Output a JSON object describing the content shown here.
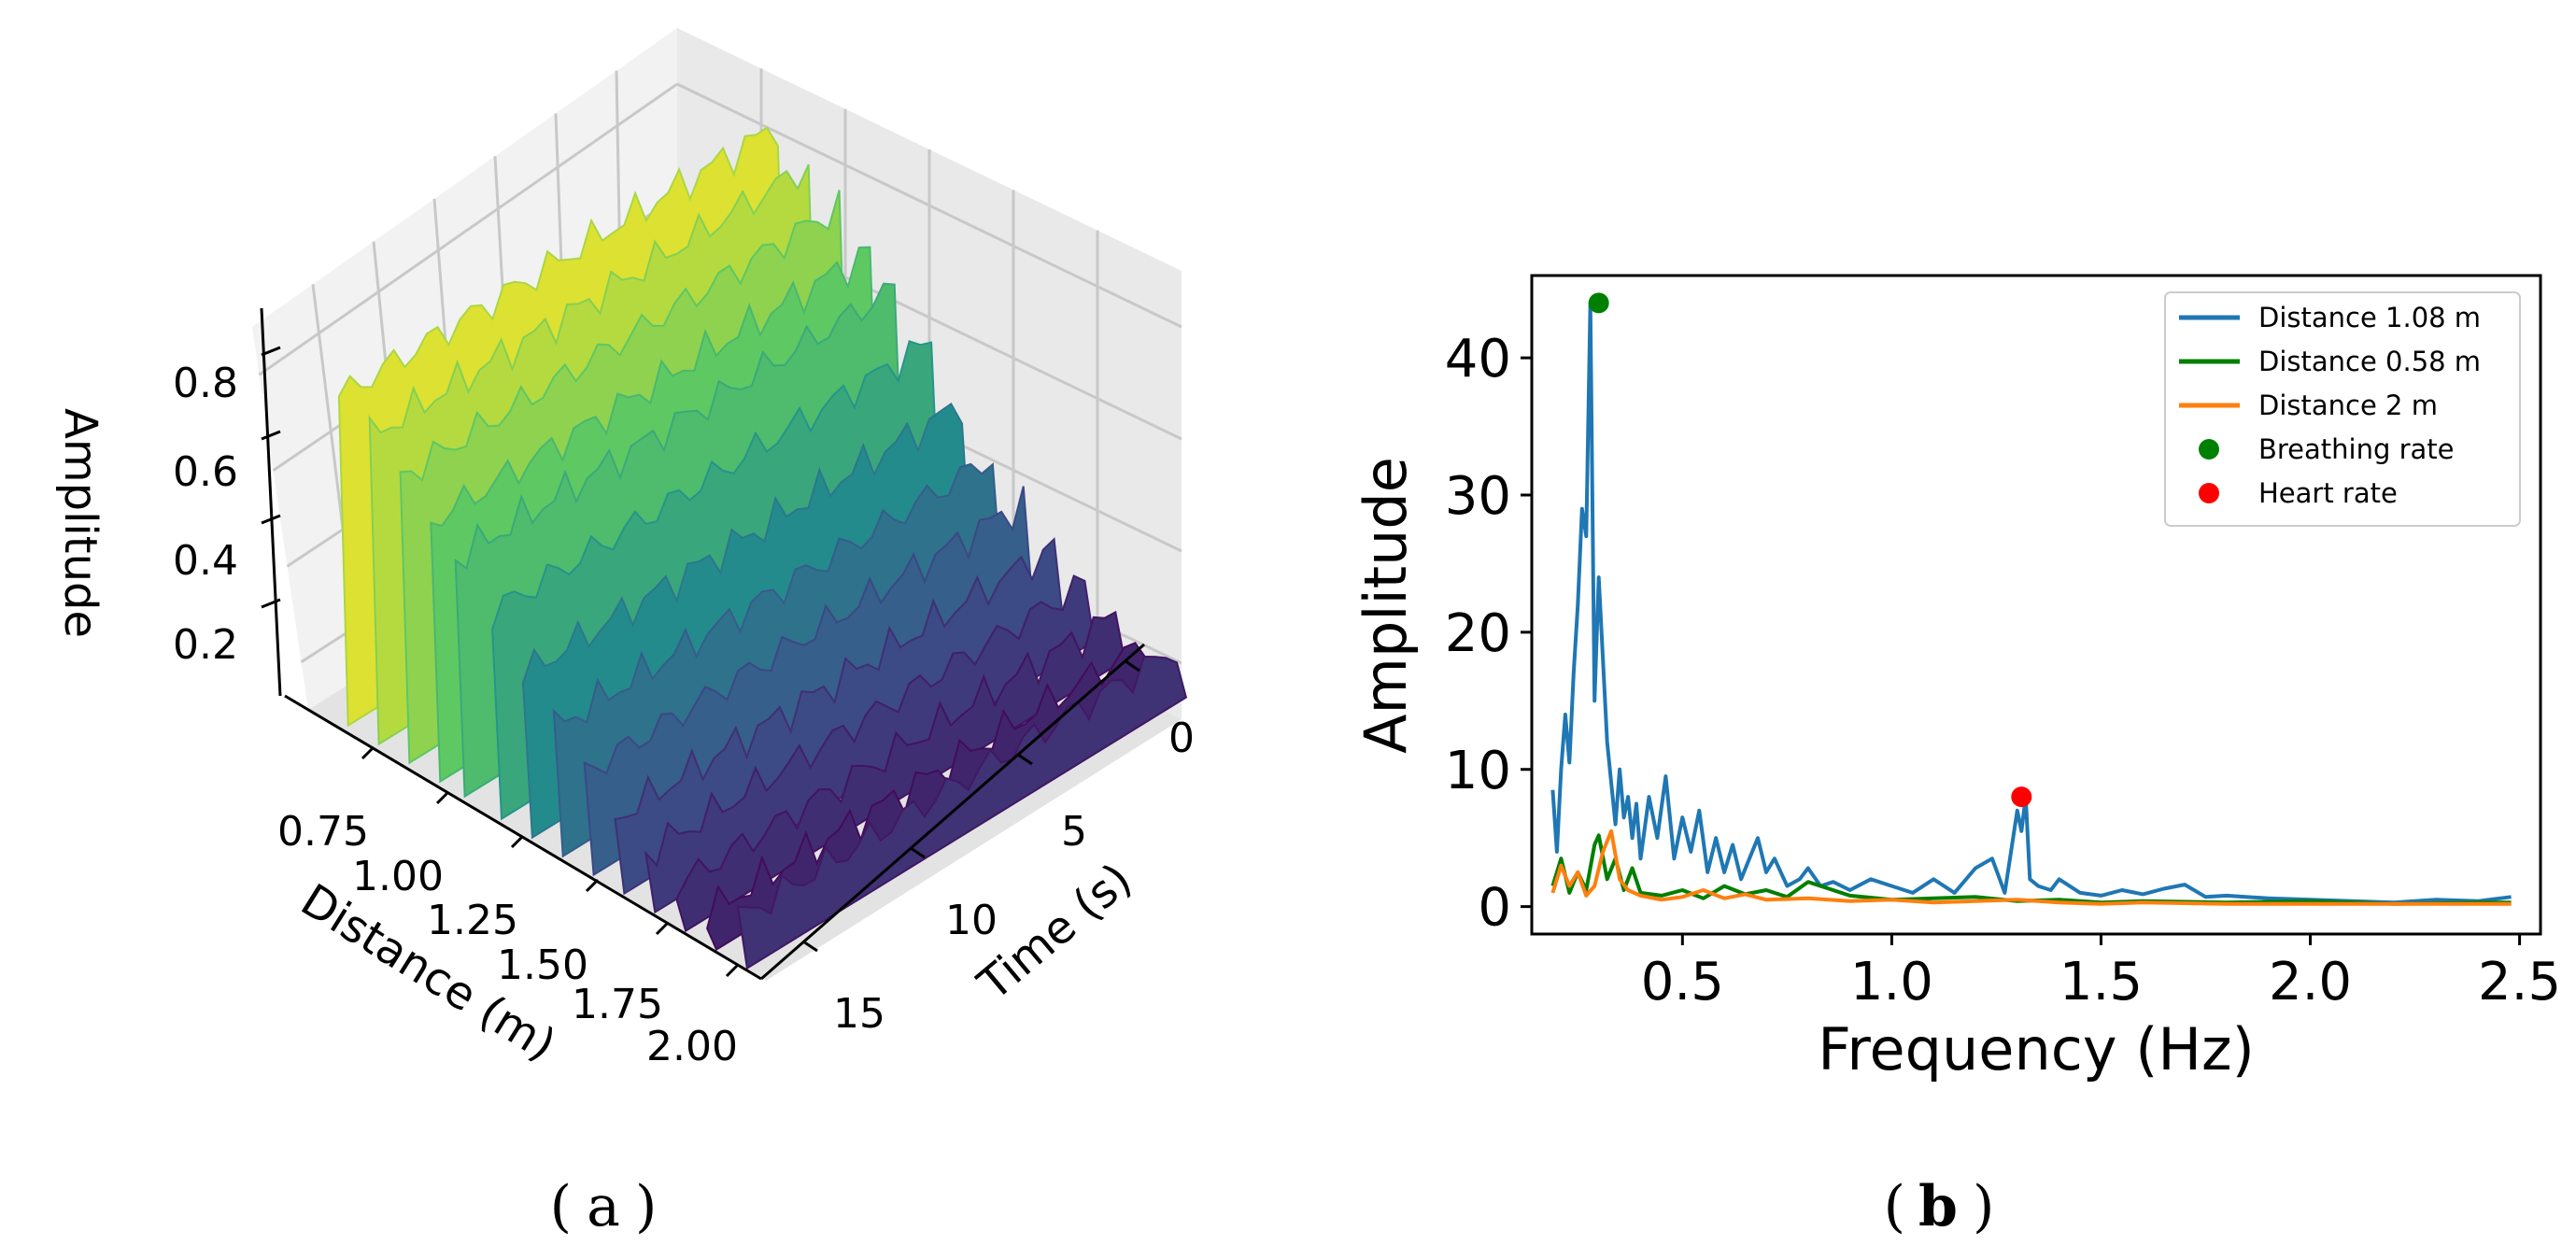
{
  "colors": {
    "series_blue": "#1f77b4",
    "series_green": "#007f00",
    "series_orange": "#ff7f0e",
    "breathing_marker": "#008000",
    "heart_marker": "#ff0000",
    "pane": "#f2f2f2",
    "grid": "#c8c8c8"
  },
  "captions": {
    "a": "a",
    "b": "b"
  },
  "chart_data": [
    {
      "type": "surface",
      "panel": "a",
      "colormap": "viridis",
      "zlabel": "Amplitude",
      "xlabel": "Distance (m)",
      "ylabel": "Time (s)",
      "z_ticks": [
        "0.2",
        "0.4",
        "0.6",
        "0.8"
      ],
      "distance_ticks": [
        "0.75",
        "1.00",
        "1.25",
        "1.50",
        "1.75",
        "2.00"
      ],
      "time_ticks": [
        "0",
        "5",
        "10",
        "15"
      ],
      "zlim": [
        0.1,
        0.9
      ],
      "distance_range": [
        0.6,
        2.0
      ],
      "time_range": [
        0,
        17
      ],
      "ridges": [
        {
          "distance": 0.7,
          "level": 0.86
        },
        {
          "distance": 0.8,
          "level": 0.81
        },
        {
          "distance": 0.9,
          "level": 0.76
        },
        {
          "distance": 1.0,
          "level": 0.7
        },
        {
          "distance": 1.08,
          "level": 0.65
        },
        {
          "distance": 1.2,
          "level": 0.58
        },
        {
          "distance": 1.3,
          "level": 0.48
        },
        {
          "distance": 1.4,
          "level": 0.4
        },
        {
          "distance": 1.5,
          "level": 0.34
        },
        {
          "distance": 1.6,
          "level": 0.28
        },
        {
          "distance": 1.7,
          "level": 0.24
        },
        {
          "distance": 1.8,
          "level": 0.21
        },
        {
          "distance": 1.9,
          "level": 0.19
        },
        {
          "distance": 2.0,
          "level": 0.22
        }
      ]
    },
    {
      "type": "line",
      "panel": "b",
      "xlabel": "Frequency (Hz)",
      "ylabel": "Amplitude",
      "xlim": [
        0.14,
        2.55
      ],
      "ylim": [
        -2,
        46
      ],
      "x_ticks": [
        "0.5",
        "1.0",
        "1.5",
        "2.0",
        "2.5"
      ],
      "y_ticks": [
        "0",
        "10",
        "20",
        "30",
        "40"
      ],
      "legend_position": "top-right",
      "series": [
        {
          "name": "Distance 1.08 m",
          "color": "#1f77b4",
          "x": [
            0.19,
            0.2,
            0.21,
            0.22,
            0.23,
            0.24,
            0.25,
            0.26,
            0.27,
            0.28,
            0.29,
            0.3,
            0.31,
            0.32,
            0.33,
            0.34,
            0.35,
            0.36,
            0.37,
            0.38,
            0.39,
            0.4,
            0.42,
            0.44,
            0.46,
            0.48,
            0.5,
            0.52,
            0.54,
            0.56,
            0.58,
            0.6,
            0.62,
            0.64,
            0.66,
            0.68,
            0.7,
            0.72,
            0.75,
            0.78,
            0.8,
            0.83,
            0.86,
            0.9,
            0.95,
            1.0,
            1.05,
            1.1,
            1.15,
            1.2,
            1.24,
            1.27,
            1.3,
            1.31,
            1.32,
            1.33,
            1.35,
            1.38,
            1.4,
            1.45,
            1.5,
            1.55,
            1.6,
            1.65,
            1.7,
            1.75,
            1.8,
            1.9,
            2.0,
            2.1,
            2.2,
            2.3,
            2.4,
            2.48
          ],
          "y": [
            8.5,
            4.0,
            10.0,
            14.0,
            10.5,
            17.0,
            22.0,
            29.0,
            27.0,
            44.0,
            15.0,
            24.0,
            18.0,
            12.0,
            9.0,
            6.0,
            10.0,
            6.5,
            8.0,
            5.0,
            7.5,
            3.5,
            8.0,
            5.0,
            9.5,
            3.5,
            6.5,
            4.0,
            7.0,
            2.5,
            5.0,
            2.5,
            4.5,
            2.0,
            3.5,
            5.0,
            2.5,
            3.5,
            1.5,
            2.0,
            2.8,
            1.5,
            1.8,
            1.2,
            2.0,
            1.5,
            1.0,
            2.0,
            1.0,
            2.8,
            3.5,
            1.0,
            7.0,
            5.5,
            8.0,
            2.0,
            1.5,
            1.2,
            2.0,
            1.0,
            0.8,
            1.2,
            0.9,
            1.3,
            1.6,
            0.7,
            0.8,
            0.6,
            0.5,
            0.4,
            0.3,
            0.5,
            0.4,
            0.7
          ]
        },
        {
          "name": "Distance 0.58 m",
          "color": "#007f00",
          "x": [
            0.19,
            0.21,
            0.23,
            0.25,
            0.27,
            0.29,
            0.3,
            0.32,
            0.34,
            0.36,
            0.38,
            0.4,
            0.45,
            0.5,
            0.55,
            0.6,
            0.65,
            0.7,
            0.75,
            0.8,
            0.9,
            1.0,
            1.1,
            1.2,
            1.3,
            1.4,
            1.5,
            1.6,
            1.8,
            2.0,
            2.2,
            2.4,
            2.48
          ],
          "y": [
            1.5,
            3.5,
            1.0,
            2.5,
            1.2,
            4.5,
            5.2,
            2.0,
            3.5,
            1.2,
            2.8,
            1.0,
            0.8,
            1.2,
            0.6,
            1.5,
            0.9,
            1.2,
            0.7,
            1.8,
            0.8,
            0.5,
            0.6,
            0.7,
            0.4,
            0.5,
            0.3,
            0.4,
            0.3,
            0.4,
            0.2,
            0.3,
            0.3
          ]
        },
        {
          "name": "Distance 2 m",
          "color": "#ff7f0e",
          "x": [
            0.19,
            0.21,
            0.23,
            0.25,
            0.27,
            0.29,
            0.31,
            0.33,
            0.35,
            0.37,
            0.4,
            0.45,
            0.5,
            0.55,
            0.6,
            0.65,
            0.7,
            0.8,
            0.9,
            1.0,
            1.1,
            1.2,
            1.3,
            1.4,
            1.5,
            1.6,
            1.8,
            2.0,
            2.2,
            2.4,
            2.48
          ],
          "y": [
            1.0,
            3.0,
            1.5,
            2.5,
            0.8,
            1.5,
            4.0,
            5.5,
            2.0,
            1.2,
            0.8,
            0.5,
            0.7,
            1.2,
            0.6,
            0.9,
            0.5,
            0.6,
            0.4,
            0.5,
            0.3,
            0.4,
            0.5,
            0.3,
            0.2,
            0.3,
            0.2,
            0.2,
            0.2,
            0.2,
            0.2
          ]
        }
      ],
      "markers": [
        {
          "name": "Breathing rate",
          "x": 0.3,
          "y": 44.0,
          "color": "#008000"
        },
        {
          "name": "Heart rate",
          "x": 1.31,
          "y": 8.0,
          "color": "#ff0000"
        }
      ]
    }
  ]
}
